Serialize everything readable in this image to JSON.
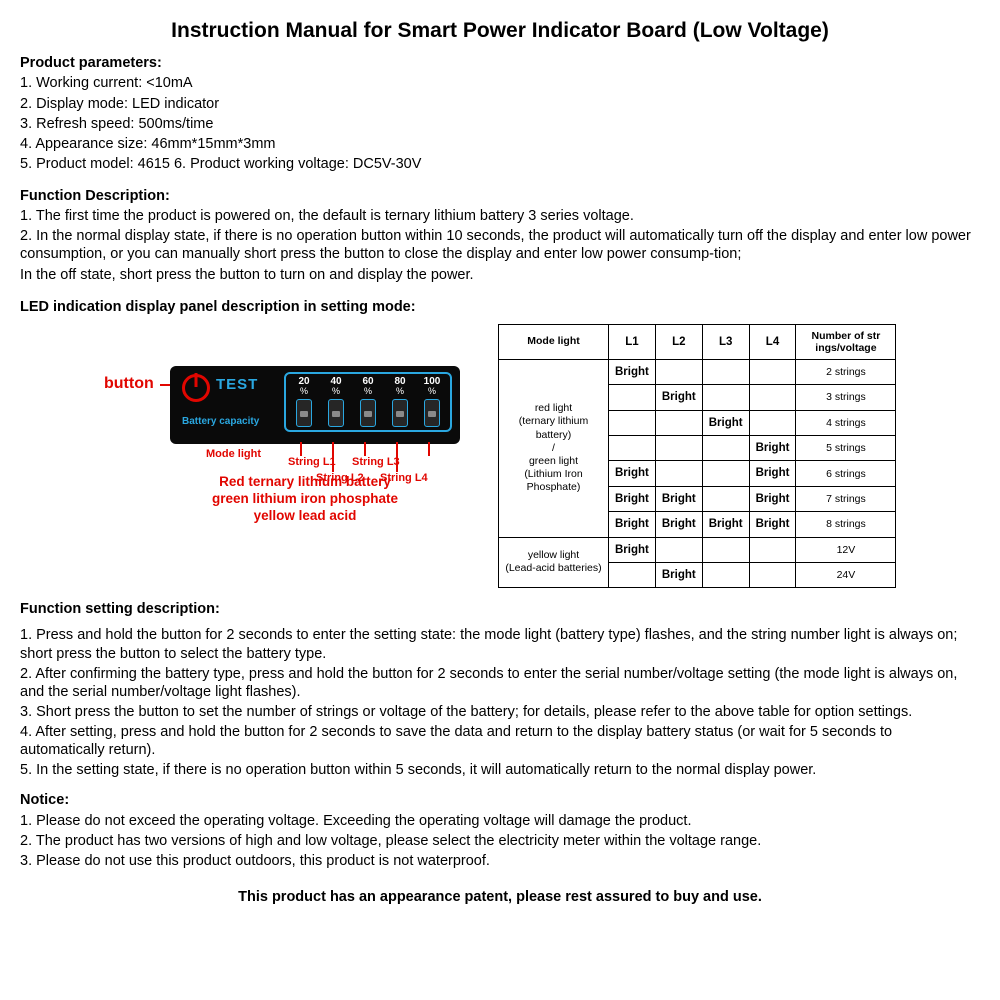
{
  "title": "Instruction Manual for Smart Power Indicator Board (Low Voltage)",
  "params": {
    "head": "Product parameters:",
    "p1": "1. Working current: <10mA",
    "p2": "2. Display mode: LED indicator",
    "p3": "3. Refresh speed: 500ms/time",
    "p4": "4. Appearance size: 46mm*15mm*3mm",
    "p5": "5. Product model: 4615 6. Product working voltage: DC5V-30V"
  },
  "funcdesc": {
    "head": "Function Description:",
    "p1": "1. The first time the product is powered on, the default is ternary lithium battery 3 series voltage.",
    "p2": "2. In the normal display state, if there is no operation button within 10 seconds, the product will automatically turn off the display and enter low power consumption, or you can manually short press the button to close the display and enter low power consump-tion;",
    "p3": "In the off state, short press the button to turn on and display the power."
  },
  "panelhead": "LED indication display panel description in setting mode:",
  "diagram": {
    "button_label": "button",
    "test": "TEST",
    "capacity": "Battery capacity",
    "bars": [
      "20",
      "40",
      "60",
      "80",
      "100"
    ],
    "pct": "%",
    "mode_light": "Mode light",
    "s1": "String L1",
    "s2": "String L2",
    "s3": "String L3",
    "s4": "String L4",
    "legend1": "Red ternary lithium battery",
    "legend2": "green lithium iron phosphate",
    "legend3": "yellow lead acid"
  },
  "table": {
    "h_mode": "Mode light",
    "h_l1": "L1",
    "h_l2": "L2",
    "h_l3": "L3",
    "h_l4": "L4",
    "h_strings": "Number of str\nings/voltage",
    "mode_red": "red light\n(ternary lithium battery)\n/\ngreen light\n(Lithium Iron Phosphate)",
    "mode_yellow": "yellow light\n(Lead-acid batteries)",
    "bright": "Bright",
    "rows_red": [
      {
        "l": [
          1,
          0,
          0,
          0
        ],
        "v": "2 strings"
      },
      {
        "l": [
          0,
          1,
          0,
          0
        ],
        "v": "3 strings"
      },
      {
        "l": [
          0,
          0,
          1,
          0
        ],
        "v": "4 strings"
      },
      {
        "l": [
          0,
          0,
          0,
          1
        ],
        "v": "5 strings"
      },
      {
        "l": [
          1,
          0,
          0,
          1
        ],
        "v": "6 strings"
      },
      {
        "l": [
          1,
          1,
          0,
          1
        ],
        "v": "7 strings"
      },
      {
        "l": [
          1,
          1,
          1,
          1
        ],
        "v": "8 strings"
      }
    ],
    "rows_yellow": [
      {
        "l": [
          1,
          0,
          0,
          0
        ],
        "v": "12V"
      },
      {
        "l": [
          0,
          1,
          0,
          0
        ],
        "v": "24V"
      }
    ]
  },
  "setting": {
    "head": "Function setting description:",
    "p1": "1. Press and hold the button for 2 seconds to enter the setting state: the mode light (battery type) flashes, and the string number light is always on; short press the button to select the battery type.",
    "p2": "2. After confirming the battery type, press and hold the button for 2 seconds to enter the serial number/voltage setting (the mode light is always on, and the serial number/voltage light flashes).",
    "p3": "3. Short press the button to set the number of strings or voltage of the battery; for details, please refer to the above table for option settings.",
    "p4": "4. After setting, press and hold the button for 2 seconds to save the data and return to the display battery status (or wait for 5 seconds to automatically return).",
    "p5": "5. In the setting state, if there is no operation button within 5 seconds, it will automatically return to the normal display power."
  },
  "notice": {
    "head": "Notice:",
    "p1": "1. Please do not exceed the operating voltage. Exceeding the operating voltage will damage the product.",
    "p2": "2. The product has two versions of high and low voltage, please select the electricity meter within the voltage range.",
    "p3": "3. Please do not use this product outdoors, this product is not waterproof."
  },
  "footer": "This product has an appearance patent, please rest assured to buy and use."
}
